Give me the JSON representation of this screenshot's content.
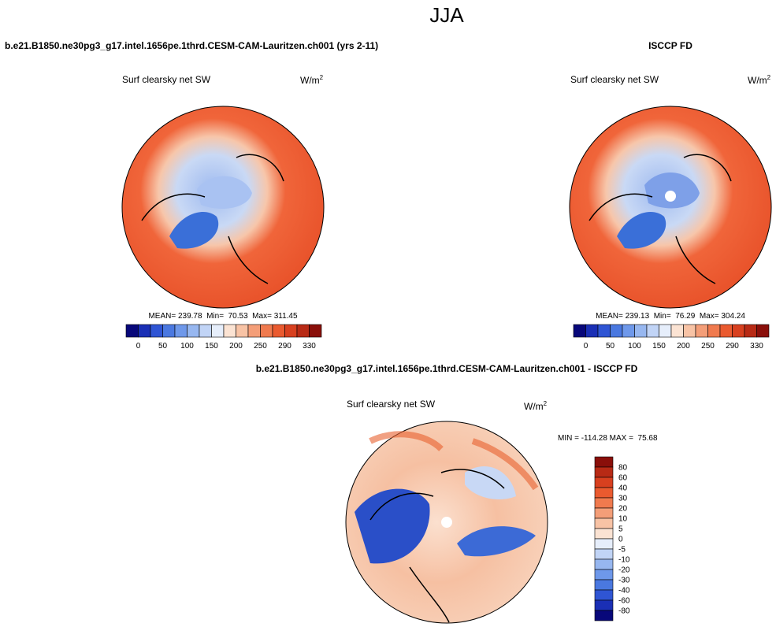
{
  "title": "JJA",
  "panels": [
    {
      "header": "b.e21.B1850.ne30pg3_g17.intel.1656pe.1thrd.CESM-CAM-Lauritzen.ch001 (yrs 2-11)",
      "variable": "Surf clearsky net SW",
      "units": "W/m",
      "units_sup": "2",
      "stats": "MEAN= 239.78  Min=  70.53  Max= 311.45",
      "colorbar": {
        "labels": [
          "0",
          "50",
          "100",
          "150",
          "200",
          "250",
          "290",
          "330"
        ]
      }
    },
    {
      "header": "ISCCP FD",
      "variable": "Surf clearsky net SW",
      "units": "W/m",
      "units_sup": "2",
      "stats": "MEAN= 239.13  Min=  76.29  Max= 304.24",
      "colorbar": {
        "labels": [
          "0",
          "50",
          "100",
          "150",
          "200",
          "250",
          "290",
          "330"
        ]
      }
    }
  ],
  "difference": {
    "header": "b.e21.B1850.ne30pg3_g17.intel.1656pe.1thrd.CESM-CAM-Lauritzen.ch001 - ISCCP FD",
    "variable": "Surf clearsky net SW",
    "units": "W/m",
    "units_sup": "2",
    "stats": "MIN = -114.28 MAX =  75.68",
    "colorbar": {
      "labels": [
        "80",
        "60",
        "40",
        "30",
        "20",
        "10",
        "5",
        "0",
        "-5",
        "-10",
        "-20",
        "-30",
        "-40",
        "-60",
        "-80"
      ]
    }
  }
}
